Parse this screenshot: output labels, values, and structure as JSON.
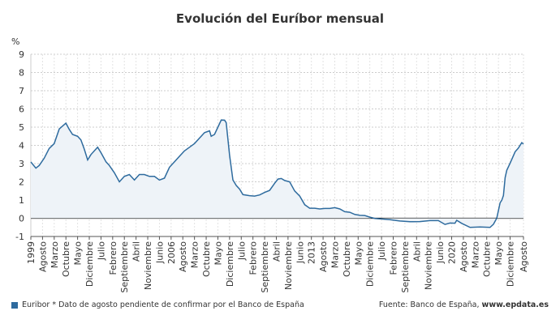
{
  "title": "Evolución del Euríbor mensual",
  "legend": "Euribor * Dato de agosto pendiente de confirmar por el Banco de España",
  "source_prefix": "Fuente: Banco de España, ",
  "source_site": "www.epdata.es",
  "chart_data": {
    "type": "area",
    "title": "Evolución del Euríbor mensual",
    "ylabel": "%",
    "ylim": [
      -1,
      9
    ],
    "yticks": [
      -1,
      0,
      1,
      2,
      3,
      4,
      5,
      6,
      7,
      8,
      9
    ],
    "grid": true,
    "legend_position": "bottom",
    "color": "#2e6b9e",
    "xticks": [
      "1999",
      "Agosto",
      "Marzo",
      "Octubre",
      "Mayo",
      "Diciembre",
      "Julio",
      "Febrero",
      "Septiembre",
      "Abril",
      "Noviembre",
      "Junio",
      "2006",
      "Agosto",
      "Marzo",
      "Octubre",
      "Mayo",
      "Diciembre",
      "Julio",
      "Febrero",
      "Septiembre",
      "Abril",
      "Noviembre",
      "Junio",
      "2013",
      "Agosto",
      "Marzo",
      "Octubre",
      "Mayo",
      "Diciembre",
      "Julio",
      "Febrero",
      "Septiembre",
      "Abril",
      "Noviembre",
      "Junio",
      "2020",
      "Agosto",
      "Marzo",
      "Octubre",
      "Mayo",
      "Diciembre",
      "Agosto"
    ],
    "series": [
      {
        "name": "Euribor",
        "points": [
          [
            "1999-01",
            3.09
          ],
          [
            "1999-04",
            2.75
          ],
          [
            "1999-06",
            2.9
          ],
          [
            "1999-09",
            3.3
          ],
          [
            "1999-12",
            3.83
          ],
          [
            "2000-03",
            4.1
          ],
          [
            "2000-06",
            4.9
          ],
          [
            "2000-10",
            5.22
          ],
          [
            "2000-12",
            4.88
          ],
          [
            "2001-02",
            4.6
          ],
          [
            "2001-05",
            4.5
          ],
          [
            "2001-07",
            4.3
          ],
          [
            "2001-09",
            3.8
          ],
          [
            "2001-11",
            3.2
          ],
          [
            "2002-01",
            3.5
          ],
          [
            "2002-05",
            3.9
          ],
          [
            "2002-07",
            3.6
          ],
          [
            "2002-10",
            3.1
          ],
          [
            "2002-12",
            2.9
          ],
          [
            "2003-03",
            2.5
          ],
          [
            "2003-06",
            2.0
          ],
          [
            "2003-09",
            2.3
          ],
          [
            "2003-12",
            2.4
          ],
          [
            "2004-03",
            2.1
          ],
          [
            "2004-06",
            2.4
          ],
          [
            "2004-09",
            2.4
          ],
          [
            "2004-12",
            2.3
          ],
          [
            "2005-03",
            2.3
          ],
          [
            "2005-06",
            2.1
          ],
          [
            "2005-09",
            2.2
          ],
          [
            "2005-12",
            2.8
          ],
          [
            "2006-03",
            3.1
          ],
          [
            "2006-06",
            3.4
          ],
          [
            "2006-09",
            3.7
          ],
          [
            "2006-12",
            3.9
          ],
          [
            "2007-03",
            4.1
          ],
          [
            "2007-06",
            4.4
          ],
          [
            "2007-09",
            4.7
          ],
          [
            "2007-12",
            4.8
          ],
          [
            "2008-01",
            4.5
          ],
          [
            "2008-03",
            4.6
          ],
          [
            "2008-05",
            5.0
          ],
          [
            "2008-07",
            5.39
          ],
          [
            "2008-09",
            5.38
          ],
          [
            "2008-10",
            5.25
          ],
          [
            "2008-11",
            4.35
          ],
          [
            "2008-12",
            3.45
          ],
          [
            "2009-02",
            2.1
          ],
          [
            "2009-04",
            1.8
          ],
          [
            "2009-06",
            1.6
          ],
          [
            "2009-08",
            1.3
          ],
          [
            "2009-12",
            1.24
          ],
          [
            "2010-03",
            1.22
          ],
          [
            "2010-06",
            1.28
          ],
          [
            "2010-09",
            1.42
          ],
          [
            "2010-12",
            1.53
          ],
          [
            "2011-03",
            1.92
          ],
          [
            "2011-05",
            2.15
          ],
          [
            "2011-07",
            2.18
          ],
          [
            "2011-09",
            2.07
          ],
          [
            "2011-12",
            2.0
          ],
          [
            "2012-03",
            1.5
          ],
          [
            "2012-06",
            1.22
          ],
          [
            "2012-09",
            0.74
          ],
          [
            "2012-12",
            0.55
          ],
          [
            "2013-03",
            0.55
          ],
          [
            "2013-06",
            0.51
          ],
          [
            "2013-09",
            0.54
          ],
          [
            "2013-12",
            0.54
          ],
          [
            "2014-03",
            0.58
          ],
          [
            "2014-06",
            0.51
          ],
          [
            "2014-09",
            0.36
          ],
          [
            "2014-12",
            0.33
          ],
          [
            "2015-03",
            0.21
          ],
          [
            "2015-06",
            0.16
          ],
          [
            "2015-09",
            0.15
          ],
          [
            "2015-12",
            0.06
          ],
          [
            "2016-03",
            -0.01
          ],
          [
            "2016-06",
            -0.03
          ],
          [
            "2016-12",
            -0.08
          ],
          [
            "2017-06",
            -0.15
          ],
          [
            "2017-12",
            -0.19
          ],
          [
            "2018-06",
            -0.18
          ],
          [
            "2018-12",
            -0.13
          ],
          [
            "2019-05",
            -0.13
          ],
          [
            "2019-09",
            -0.34
          ],
          [
            "2019-12",
            -0.26
          ],
          [
            "2020-03",
            -0.27
          ],
          [
            "2020-04",
            -0.11
          ],
          [
            "2020-07",
            -0.28
          ],
          [
            "2020-12",
            -0.5
          ],
          [
            "2021-06",
            -0.48
          ],
          [
            "2021-12",
            -0.5
          ],
          [
            "2022-02",
            -0.33
          ],
          [
            "2022-04",
            0.01
          ],
          [
            "2022-06",
            0.85
          ],
          [
            "2022-07",
            0.99
          ],
          [
            "2022-08",
            1.25
          ],
          [
            "2022-09",
            2.23
          ],
          [
            "2022-10",
            2.63
          ],
          [
            "2022-12",
            3.02
          ],
          [
            "2023-03",
            3.65
          ],
          [
            "2023-05",
            3.86
          ],
          [
            "2023-07",
            4.15
          ],
          [
            "2023-08",
            4.07
          ]
        ]
      }
    ]
  }
}
